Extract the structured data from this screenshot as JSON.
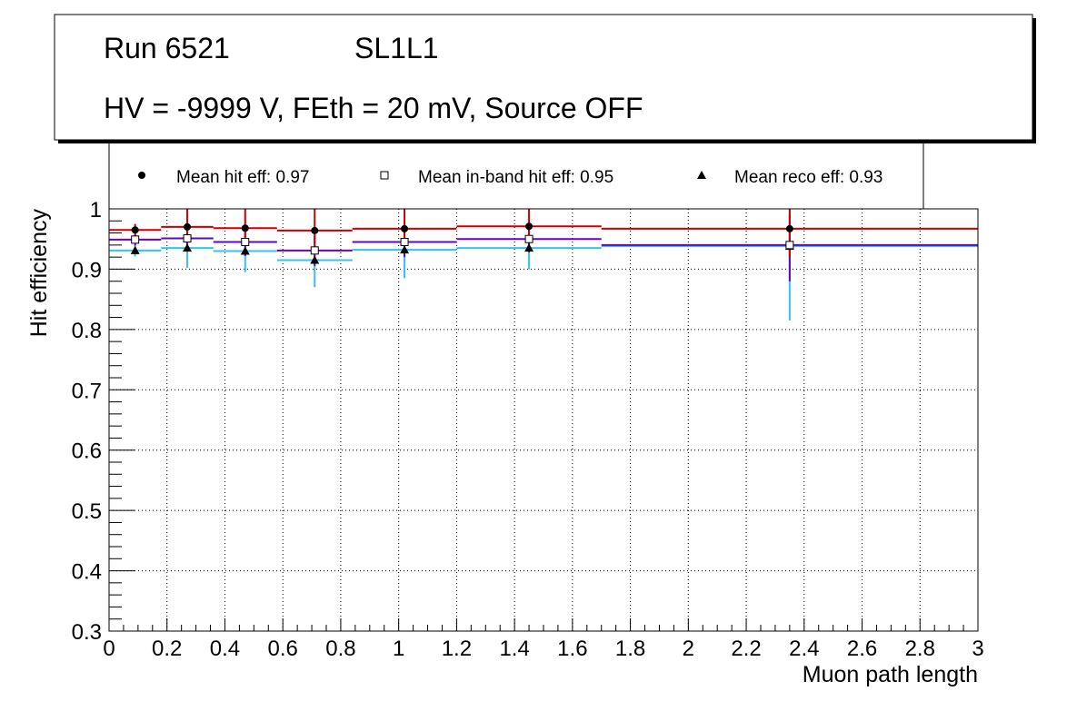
{
  "header": {
    "run_label": "Run 6521",
    "layer_label": "SL1L1",
    "conditions": "HV = -9999 V, FEth = 20 mV, Source OFF"
  },
  "legend": {
    "hit": "Mean hit  eff: 0.97",
    "inband": "Mean in-band hit eff: 0.95",
    "reco": "Mean reco eff: 0.93"
  },
  "colors": {
    "hit": "#cc0000",
    "inband": "#6600cc",
    "reco": "#33c3f0",
    "grid": "#000000"
  },
  "chart_data": {
    "type": "scatter",
    "title": "",
    "xlabel": "Muon path length",
    "ylabel": "Hit efficiency",
    "xlim": [
      0,
      3
    ],
    "ylim": [
      0.3,
      1
    ],
    "grid": true,
    "x_ticks": [
      "0",
      "0.2",
      "0.4",
      "0.6",
      "0.8",
      "1",
      "1.2",
      "1.4",
      "1.6",
      "1.8",
      "2",
      "2.2",
      "2.4",
      "2.6",
      "2.8",
      "3"
    ],
    "y_ticks": [
      "0.3",
      "0.4",
      "0.5",
      "0.6",
      "0.7",
      "0.8",
      "0.9",
      "1"
    ],
    "series": [
      {
        "name": "Mean hit  eff: 0.97",
        "key": "hit",
        "marker": "circle",
        "points": [
          {
            "x": 0.09,
            "xlo": 0.0,
            "xhi": 0.18,
            "y": 0.965,
            "ylo": 0.955,
            "yhi": 0.975
          },
          {
            "x": 0.27,
            "xlo": 0.18,
            "xhi": 0.36,
            "y": 0.97,
            "ylo": 0.945,
            "yhi": 1.0
          },
          {
            "x": 0.47,
            "xlo": 0.36,
            "xhi": 0.58,
            "y": 0.968,
            "ylo": 0.945,
            "yhi": 1.0
          },
          {
            "x": 0.71,
            "xlo": 0.58,
            "xhi": 0.84,
            "y": 0.964,
            "ylo": 0.935,
            "yhi": 1.0
          },
          {
            "x": 1.02,
            "xlo": 0.84,
            "xhi": 1.2,
            "y": 0.967,
            "ylo": 0.94,
            "yhi": 1.0
          },
          {
            "x": 1.45,
            "xlo": 1.2,
            "xhi": 1.7,
            "y": 0.971,
            "ylo": 0.945,
            "yhi": 1.0
          },
          {
            "x": 2.35,
            "xlo": 1.7,
            "xhi": 3.0,
            "y": 0.967,
            "ylo": 0.92,
            "yhi": 1.0
          }
        ]
      },
      {
        "name": "Mean in-band hit eff: 0.95",
        "key": "inband",
        "marker": "open-square",
        "points": [
          {
            "x": 0.09,
            "xlo": 0.0,
            "xhi": 0.18,
            "y": 0.949,
            "ylo": 0.939,
            "yhi": 0.959
          },
          {
            "x": 0.27,
            "xlo": 0.18,
            "xhi": 0.36,
            "y": 0.951,
            "ylo": 0.93,
            "yhi": 0.972
          },
          {
            "x": 0.47,
            "xlo": 0.36,
            "xhi": 0.58,
            "y": 0.945,
            "ylo": 0.922,
            "yhi": 0.968
          },
          {
            "x": 0.71,
            "xlo": 0.58,
            "xhi": 0.84,
            "y": 0.931,
            "ylo": 0.905,
            "yhi": 0.957
          },
          {
            "x": 1.02,
            "xlo": 0.84,
            "xhi": 1.2,
            "y": 0.945,
            "ylo": 0.92,
            "yhi": 0.97
          },
          {
            "x": 1.45,
            "xlo": 1.2,
            "xhi": 1.7,
            "y": 0.95,
            "ylo": 0.928,
            "yhi": 0.972
          },
          {
            "x": 2.35,
            "xlo": 1.7,
            "xhi": 3.0,
            "y": 0.94,
            "ylo": 0.88,
            "yhi": 0.99
          }
        ]
      },
      {
        "name": "Mean reco eff: 0.93",
        "key": "reco",
        "marker": "triangle",
        "points": [
          {
            "x": 0.09,
            "xlo": 0.0,
            "xhi": 0.18,
            "y": 0.931,
            "ylo": 0.921,
            "yhi": 0.941
          },
          {
            "x": 0.27,
            "xlo": 0.18,
            "xhi": 0.36,
            "y": 0.935,
            "ylo": 0.902,
            "yhi": 0.965
          },
          {
            "x": 0.47,
            "xlo": 0.36,
            "xhi": 0.58,
            "y": 0.93,
            "ylo": 0.895,
            "yhi": 0.963
          },
          {
            "x": 0.71,
            "xlo": 0.58,
            "xhi": 0.84,
            "y": 0.915,
            "ylo": 0.87,
            "yhi": 0.955
          },
          {
            "x": 1.02,
            "xlo": 0.84,
            "xhi": 1.2,
            "y": 0.932,
            "ylo": 0.885,
            "yhi": 0.972
          },
          {
            "x": 1.45,
            "xlo": 1.2,
            "xhi": 1.7,
            "y": 0.935,
            "ylo": 0.9,
            "yhi": 0.968
          },
          {
            "x": 2.35,
            "xlo": 1.7,
            "xhi": 3.0,
            "y": 0.938,
            "ylo": 0.815,
            "yhi": 1.0
          }
        ]
      }
    ]
  }
}
